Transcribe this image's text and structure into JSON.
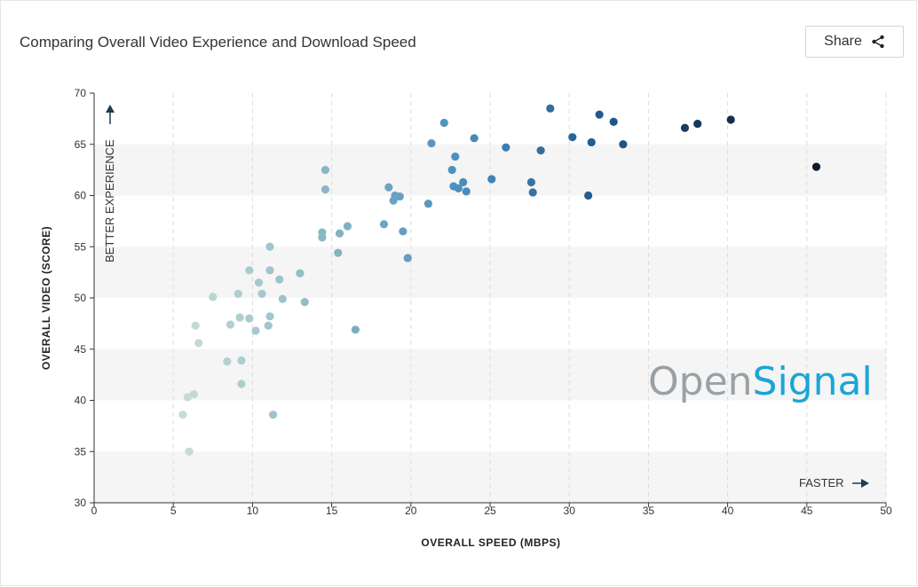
{
  "header": {
    "title": "Comparing Overall Video Experience and Download Speed",
    "share_label": "Share",
    "share_icon": "share-icon"
  },
  "watermark": {
    "part1": "Open",
    "part2": "Signal",
    "color1": "#9aa1a6",
    "color2": "#1aa6d6"
  },
  "chart_data": {
    "type": "scatter",
    "title": "Comparing Overall Video Experience and Download Speed",
    "xlabel": "OVERALL SPEED (MBPS)",
    "ylabel": "OVERALL VIDEO (SCORE)",
    "xlim": [
      0,
      50
    ],
    "ylim": [
      30,
      70
    ],
    "xticks": [
      0,
      5,
      10,
      15,
      20,
      25,
      30,
      35,
      40,
      45,
      50
    ],
    "yticks": [
      30,
      35,
      40,
      45,
      50,
      55,
      60,
      65,
      70
    ],
    "banded_y_ranges": [
      [
        30,
        35
      ],
      [
        40,
        45
      ],
      [
        50,
        55
      ],
      [
        60,
        65
      ]
    ],
    "band_color": "#f5f5f5",
    "y_annotation": "BETTER EXPERIENCE",
    "x_annotation": "FASTER",
    "color_low": "#c7ddd6",
    "color_high": "#0d1b2a",
    "points": [
      {
        "x": 5.6,
        "y": 38.6
      },
      {
        "x": 5.9,
        "y": 40.3
      },
      {
        "x": 6.0,
        "y": 35.0
      },
      {
        "x": 6.3,
        "y": 40.6
      },
      {
        "x": 6.4,
        "y": 47.3
      },
      {
        "x": 6.6,
        "y": 45.6
      },
      {
        "x": 7.5,
        "y": 50.1
      },
      {
        "x": 8.4,
        "y": 43.8
      },
      {
        "x": 8.6,
        "y": 47.4
      },
      {
        "x": 9.1,
        "y": 50.4
      },
      {
        "x": 9.2,
        "y": 48.1
      },
      {
        "x": 9.3,
        "y": 43.9
      },
      {
        "x": 9.3,
        "y": 41.6
      },
      {
        "x": 9.8,
        "y": 48.0
      },
      {
        "x": 9.8,
        "y": 52.7
      },
      {
        "x": 10.2,
        "y": 46.8
      },
      {
        "x": 10.4,
        "y": 51.5
      },
      {
        "x": 10.6,
        "y": 50.4
      },
      {
        "x": 11.0,
        "y": 47.3
      },
      {
        "x": 11.1,
        "y": 55.0
      },
      {
        "x": 11.1,
        "y": 52.7
      },
      {
        "x": 11.1,
        "y": 48.2
      },
      {
        "x": 11.3,
        "y": 38.6
      },
      {
        "x": 11.7,
        "y": 51.8
      },
      {
        "x": 11.9,
        "y": 49.9
      },
      {
        "x": 13.0,
        "y": 52.4
      },
      {
        "x": 13.3,
        "y": 49.6
      },
      {
        "x": 14.4,
        "y": 55.9
      },
      {
        "x": 14.4,
        "y": 56.4
      },
      {
        "x": 14.6,
        "y": 62.5
      },
      {
        "x": 14.6,
        "y": 60.6
      },
      {
        "x": 15.4,
        "y": 54.4
      },
      {
        "x": 15.5,
        "y": 56.3
      },
      {
        "x": 16.0,
        "y": 57.0
      },
      {
        "x": 16.5,
        "y": 46.9
      },
      {
        "x": 18.3,
        "y": 57.2
      },
      {
        "x": 18.6,
        "y": 60.8
      },
      {
        "x": 18.9,
        "y": 59.5
      },
      {
        "x": 19.0,
        "y": 60.0
      },
      {
        "x": 19.3,
        "y": 59.9
      },
      {
        "x": 19.5,
        "y": 56.5
      },
      {
        "x": 19.8,
        "y": 53.9
      },
      {
        "x": 21.1,
        "y": 59.2
      },
      {
        "x": 21.3,
        "y": 65.1
      },
      {
        "x": 22.1,
        "y": 67.1
      },
      {
        "x": 22.6,
        "y": 62.5
      },
      {
        "x": 22.7,
        "y": 60.9
      },
      {
        "x": 22.8,
        "y": 63.8
      },
      {
        "x": 23.0,
        "y": 60.7
      },
      {
        "x": 23.3,
        "y": 61.3
      },
      {
        "x": 23.5,
        "y": 60.4
      },
      {
        "x": 24.0,
        "y": 65.6
      },
      {
        "x": 25.1,
        "y": 61.6
      },
      {
        "x": 26.0,
        "y": 64.7
      },
      {
        "x": 27.6,
        "y": 61.3
      },
      {
        "x": 27.7,
        "y": 60.3
      },
      {
        "x": 28.2,
        "y": 64.4
      },
      {
        "x": 28.8,
        "y": 68.5
      },
      {
        "x": 30.2,
        "y": 65.7
      },
      {
        "x": 31.2,
        "y": 60.0
      },
      {
        "x": 31.4,
        "y": 65.2
      },
      {
        "x": 31.9,
        "y": 67.9
      },
      {
        "x": 32.8,
        "y": 67.2
      },
      {
        "x": 33.4,
        "y": 65.0
      },
      {
        "x": 37.3,
        "y": 66.6
      },
      {
        "x": 38.1,
        "y": 67.0
      },
      {
        "x": 40.2,
        "y": 67.4
      },
      {
        "x": 45.6,
        "y": 62.8
      }
    ]
  }
}
